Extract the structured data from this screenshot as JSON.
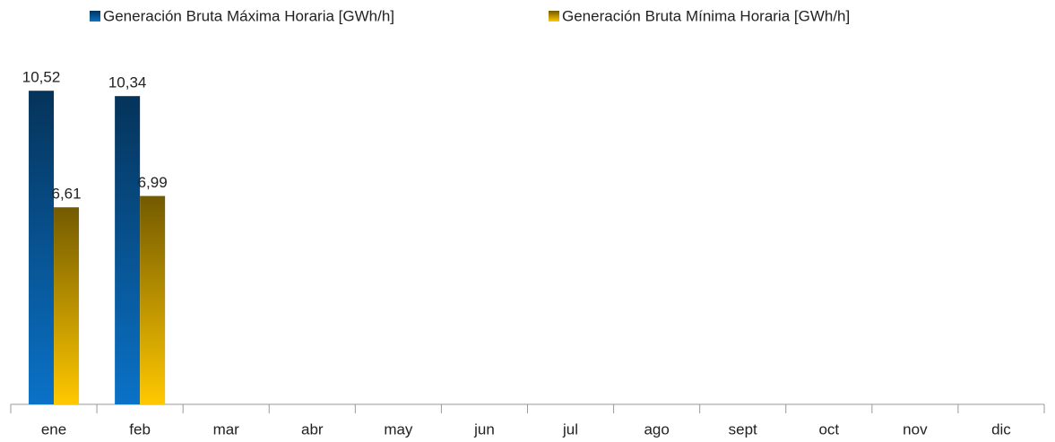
{
  "chart_data": {
    "type": "bar",
    "categories": [
      "ene",
      "feb",
      "mar",
      "abr",
      "may",
      "jun",
      "jul",
      "ago",
      "sept",
      "oct",
      "nov",
      "dic"
    ],
    "series": [
      {
        "name": "Generación Bruta Máxima Horaria [GWh/h]",
        "color": "#0a72c8",
        "values": [
          10.52,
          10.34,
          null,
          null,
          null,
          null,
          null,
          null,
          null,
          null,
          null,
          null
        ],
        "value_labels": [
          "10,52",
          "10,34",
          null,
          null,
          null,
          null,
          null,
          null,
          null,
          null,
          null,
          null
        ]
      },
      {
        "name": "Generación Bruta Mínima Horaria [GWh/h]",
        "color": "#ffc800",
        "values": [
          6.61,
          6.99,
          null,
          null,
          null,
          null,
          null,
          null,
          null,
          null,
          null,
          null
        ],
        "value_labels": [
          "6,61",
          "6,99",
          null,
          null,
          null,
          null,
          null,
          null,
          null,
          null,
          null,
          null
        ]
      }
    ],
    "ylim": [
      0,
      12
    ],
    "legend": "top"
  }
}
